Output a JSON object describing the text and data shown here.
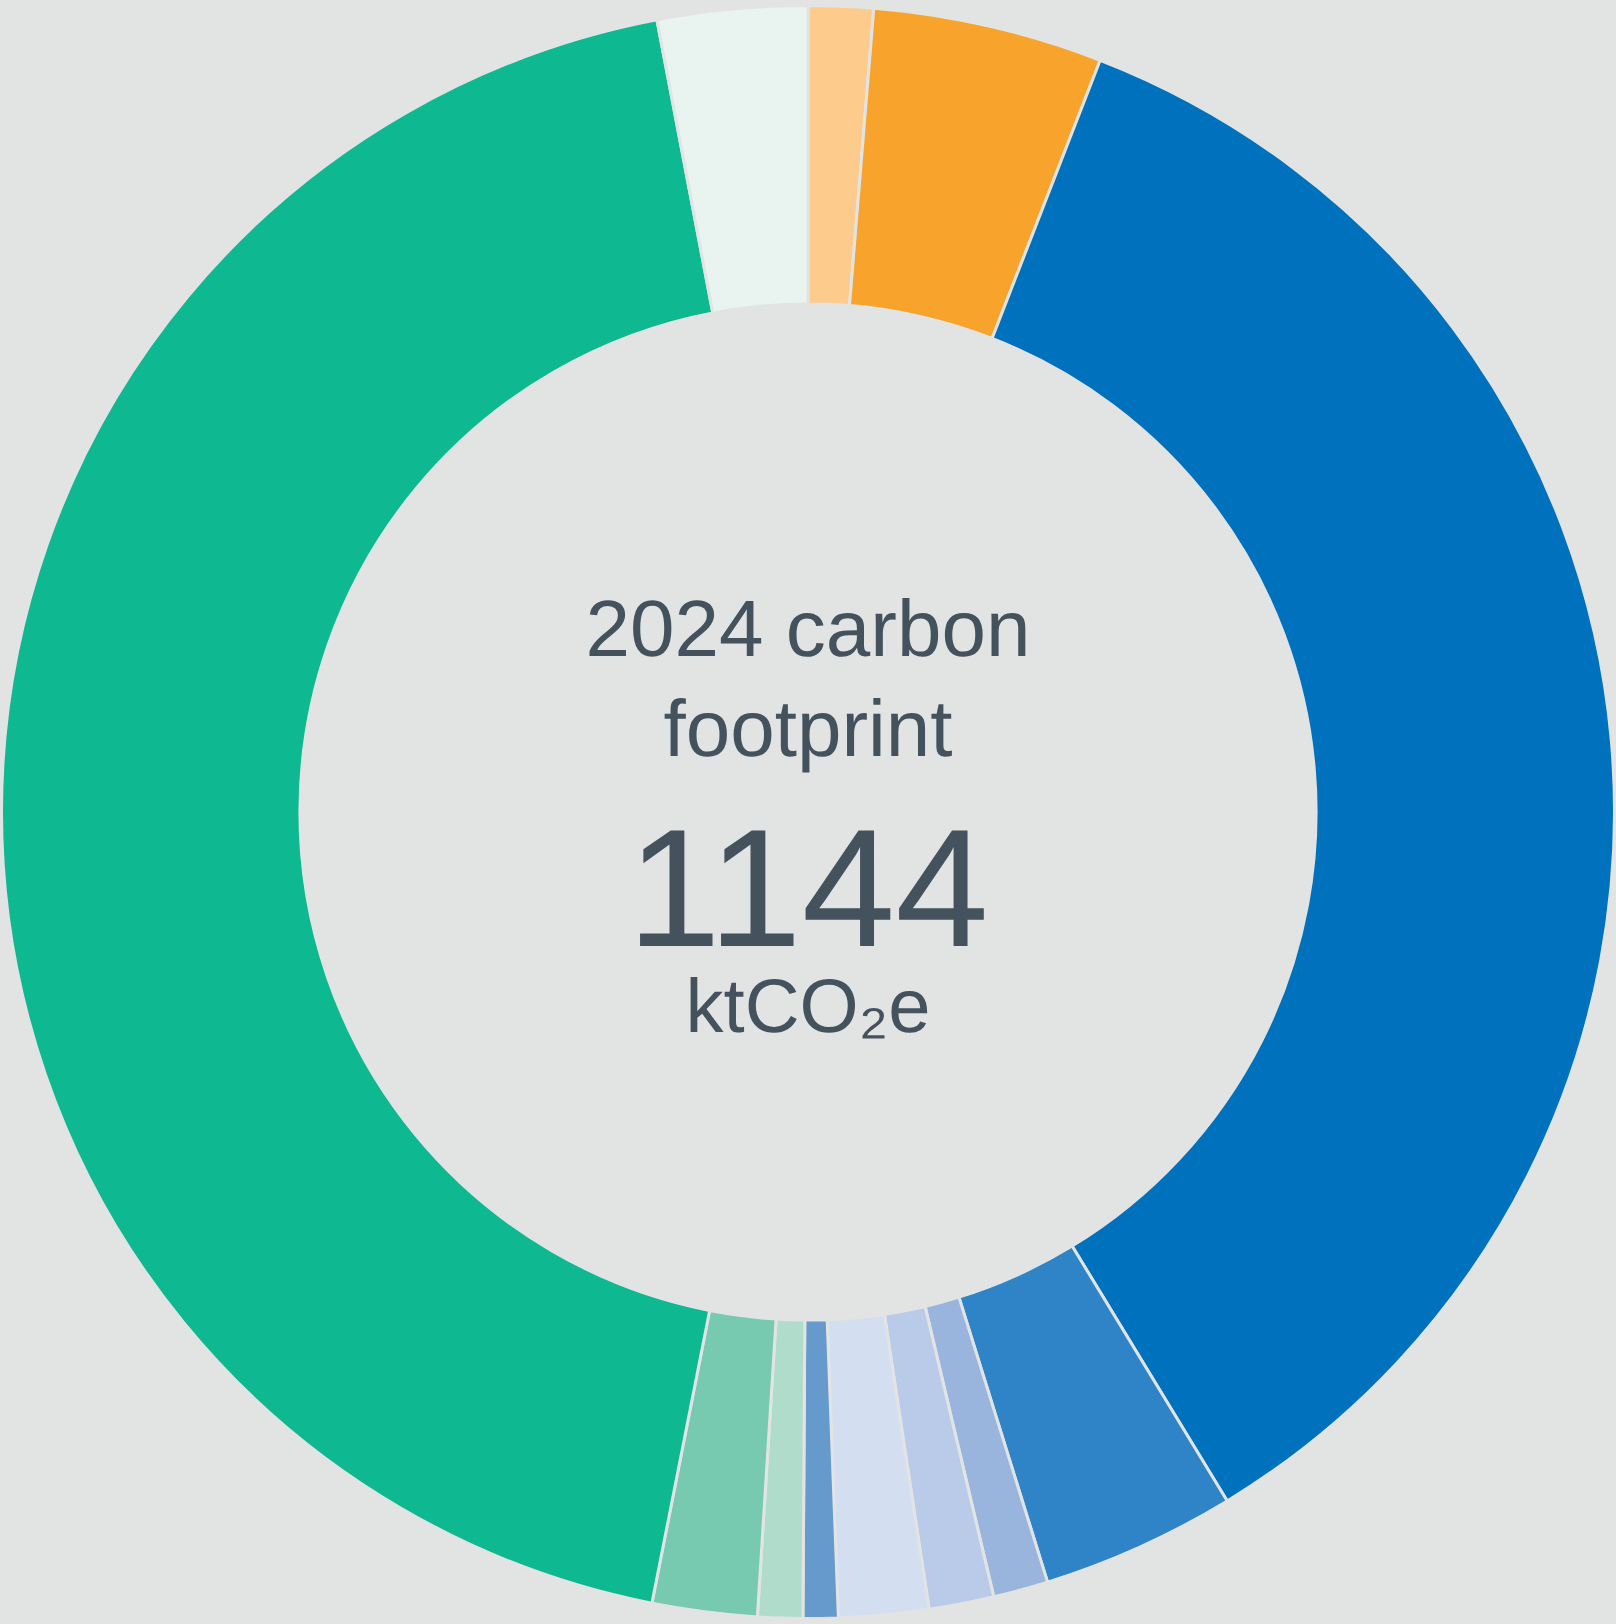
{
  "chart_data": {
    "type": "donut",
    "title": "2024 carbon footprint",
    "annotations": [
      "1144",
      "ktCO₂e"
    ],
    "categories": [
      null,
      null,
      null,
      null,
      null,
      null,
      null,
      null,
      null,
      null,
      null,
      null
    ],
    "values": [
      1.3,
      4.6,
      35.4,
      3.9,
      1.1,
      1.3,
      1.8,
      0.7,
      0.9,
      2.1,
      43.9,
      3.0
    ],
    "colors": [
      "#fdcb8c",
      "#f8a42c",
      "#0071bc",
      "#2e84c7",
      "#99b5de",
      "#b9cbe8",
      "#d3dff1",
      "#6699cc",
      "#b0dccc",
      "#77c9b0",
      "#0eb891",
      "#e9f4f0"
    ],
    "legend": false
  }
}
